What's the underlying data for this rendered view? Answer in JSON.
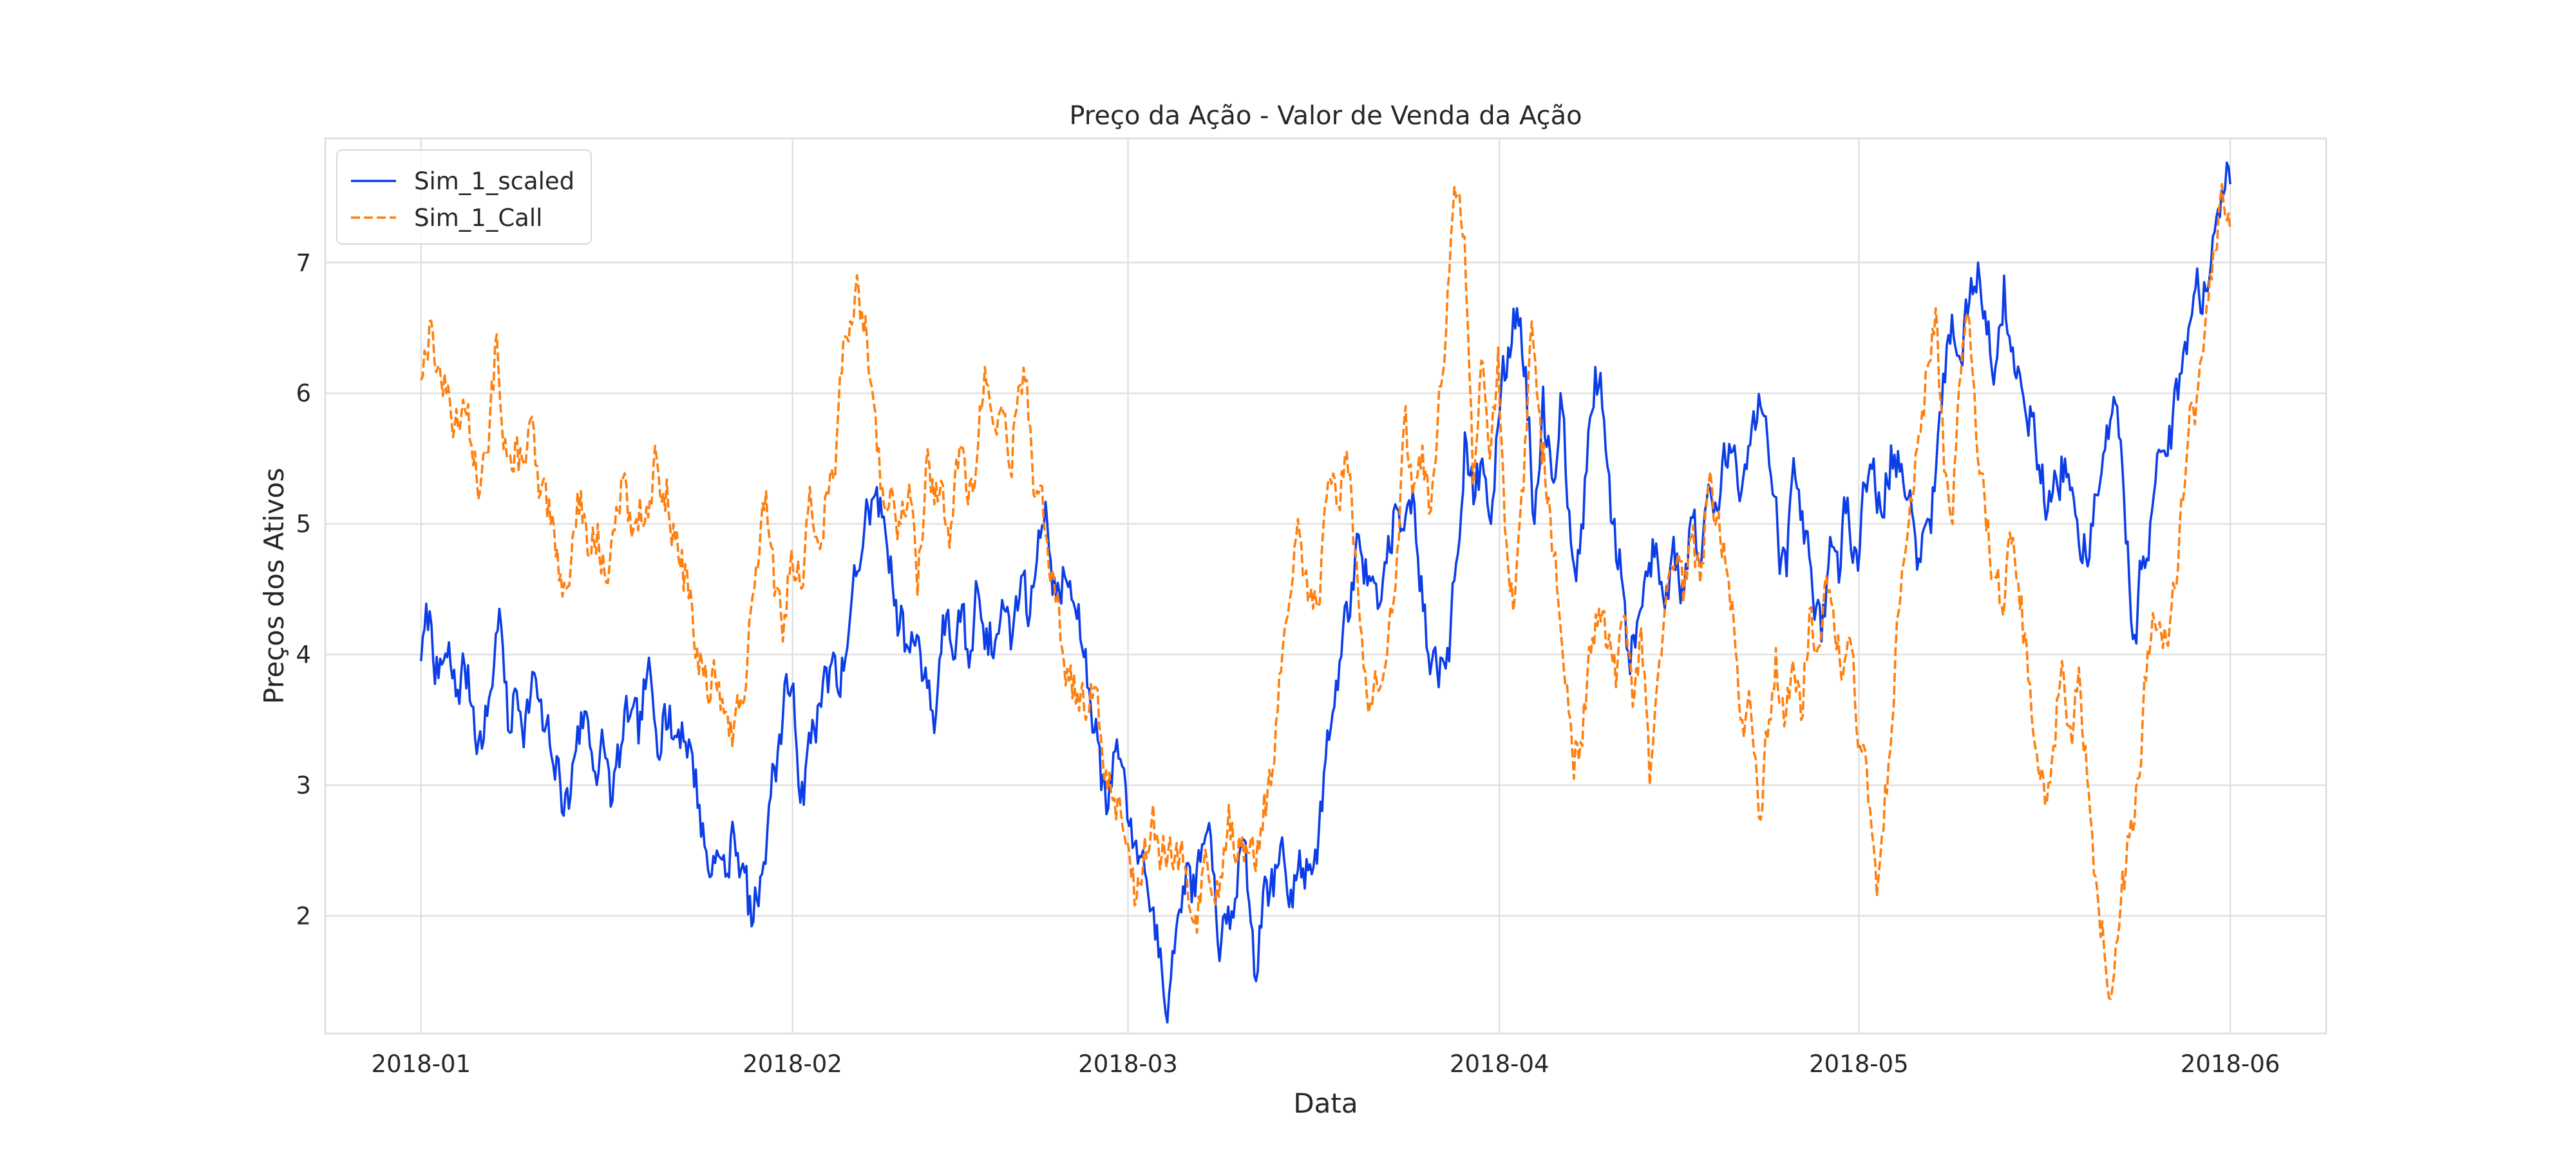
{
  "chart_data": {
    "type": "line",
    "title": "Preço da Ação - Valor de Venda da Ação",
    "xlabel": "Data",
    "ylabel": "Preços dos Ativos",
    "x_start": "2018-01-01",
    "x_end": "2018-06-01",
    "xlim": [
      "2017-12-24",
      "2018-06-09"
    ],
    "ylim": [
      1.1,
      7.95
    ],
    "grid": true,
    "legend_position": "top-left",
    "x_ticks": [
      {
        "date": "2018-01-01",
        "label": "2018-01"
      },
      {
        "date": "2018-02-01",
        "label": "2018-02"
      },
      {
        "date": "2018-03-01",
        "label": "2018-03"
      },
      {
        "date": "2018-04-01",
        "label": "2018-04"
      },
      {
        "date": "2018-05-01",
        "label": "2018-05"
      },
      {
        "date": "2018-06-01",
        "label": "2018-06"
      }
    ],
    "y_ticks": [
      {
        "value": 2,
        "label": "2"
      },
      {
        "value": 3,
        "label": "3"
      },
      {
        "value": 4,
        "label": "4"
      },
      {
        "value": 5,
        "label": "5"
      },
      {
        "value": 6,
        "label": "6"
      },
      {
        "value": 7,
        "label": "7"
      }
    ],
    "series": [
      {
        "name": "Sim_1_scaled",
        "color": "#0b3de8",
        "dash": "solid",
        "points": [
          [
            "2018-01-01",
            3.95
          ],
          [
            "2018-01-02",
            4.33
          ],
          [
            "2018-01-03",
            3.8
          ],
          [
            "2018-01-04",
            3.9
          ],
          [
            "2018-01-05",
            3.65
          ],
          [
            "2018-01-07",
            3.3
          ],
          [
            "2018-01-09",
            3.8
          ],
          [
            "2018-01-10",
            4.35
          ],
          [
            "2018-01-11",
            3.5
          ],
          [
            "2018-01-12",
            3.7
          ],
          [
            "2018-01-14",
            3.4
          ],
          [
            "2018-01-15",
            3.85
          ],
          [
            "2018-01-17",
            3.3
          ],
          [
            "2018-01-19",
            3.05
          ],
          [
            "2018-01-20",
            2.8
          ],
          [
            "2018-01-22",
            3.55
          ],
          [
            "2018-01-24",
            3.1
          ],
          [
            "2018-01-26",
            3.2
          ],
          [
            "2018-01-27",
            3.05
          ],
          [
            "2018-01-29",
            3.5
          ],
          [
            "2018-01-31",
            3.35
          ],
          [
            "2018-02-01",
            3.72
          ],
          [
            "2018-01-28",
            3.45
          ],
          [
            "2018-01-30",
            3.3
          ]
        ]
      },
      {
        "name": "Sim_1_Call",
        "color": "#ff7f0e",
        "dash": "dashed",
        "points": []
      }
    ]
  }
}
